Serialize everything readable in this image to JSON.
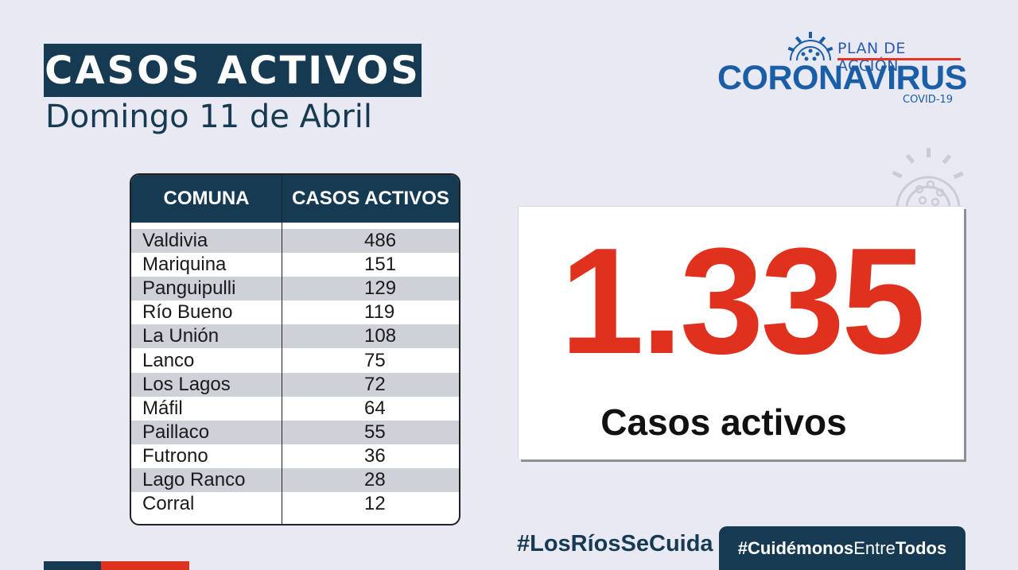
{
  "header": {
    "title": "CASOS ACTIVOS",
    "date": "Domingo 11 de Abril"
  },
  "logo": {
    "plan": "PLAN DE ACCIÓN",
    "name": "CORONAVIRUS",
    "sub": "COVID-19"
  },
  "table": {
    "headers": [
      "COMUNA",
      "CASOS ACTIVOS"
    ],
    "rows": [
      {
        "comuna": "Valdivia",
        "casos": "486"
      },
      {
        "comuna": "Mariquina",
        "casos": "151"
      },
      {
        "comuna": "Panguipulli",
        "casos": "129"
      },
      {
        "comuna": "Río Bueno",
        "casos": "119"
      },
      {
        "comuna": "La Unión",
        "casos": "108"
      },
      {
        "comuna": "Lanco",
        "casos": "75"
      },
      {
        "comuna": "Los Lagos",
        "casos": "72"
      },
      {
        "comuna": "Máfil",
        "casos": "64"
      },
      {
        "comuna": "Paillaco",
        "casos": "55"
      },
      {
        "comuna": "Futrono",
        "casos": "36"
      },
      {
        "comuna": "Lago Ranco",
        "casos": "28"
      },
      {
        "comuna": "Corral",
        "casos": "12"
      }
    ]
  },
  "summary": {
    "total": "1.335",
    "label": "Casos activos"
  },
  "footer": {
    "hashtag1": "#LosRíosSeCuida",
    "hashtag2_bold": "#Cuidémonos",
    "hashtag2_light": "Entre",
    "hashtag2_end": "Todos"
  },
  "colors": {
    "navy": "#153a52",
    "red": "#e0311f",
    "logo_blue": "#1a5ea8"
  }
}
